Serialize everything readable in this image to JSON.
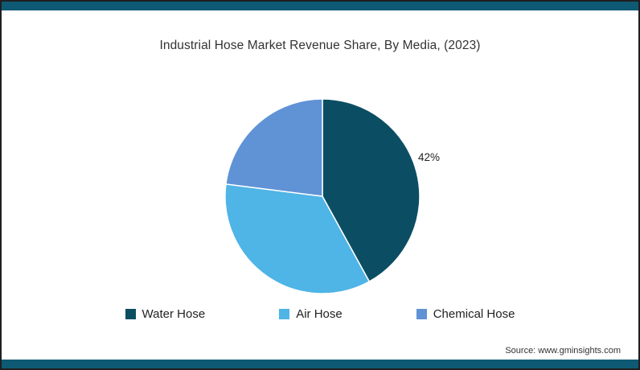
{
  "title": "Industrial Hose Market Revenue Share, By Media, (2023)",
  "source_text": "Source: www.gminsights.com",
  "accent": {
    "bar_color": "#0e5a74",
    "border_color": "#1f1f1f",
    "background": "#ffffff"
  },
  "chart_data": {
    "type": "pie",
    "title": "Industrial Hose Market Revenue Share, By Media, (2023)",
    "unit": "%",
    "start_angle": "top",
    "direction": "clockwise",
    "legend_position": "bottom",
    "slices": [
      {
        "label": "Water Hose",
        "value": 42,
        "color": "#0b4e63",
        "data_label": "42%"
      },
      {
        "label": "Air Hose",
        "value": 35,
        "color": "#4fb4e6",
        "data_label": ""
      },
      {
        "label": "Chemical Hose",
        "value": 23,
        "color": "#6092d6",
        "data_label": ""
      }
    ],
    "annotations": [
      {
        "text": "42%",
        "slice": "Water Hose",
        "position": "outside-right"
      }
    ]
  }
}
